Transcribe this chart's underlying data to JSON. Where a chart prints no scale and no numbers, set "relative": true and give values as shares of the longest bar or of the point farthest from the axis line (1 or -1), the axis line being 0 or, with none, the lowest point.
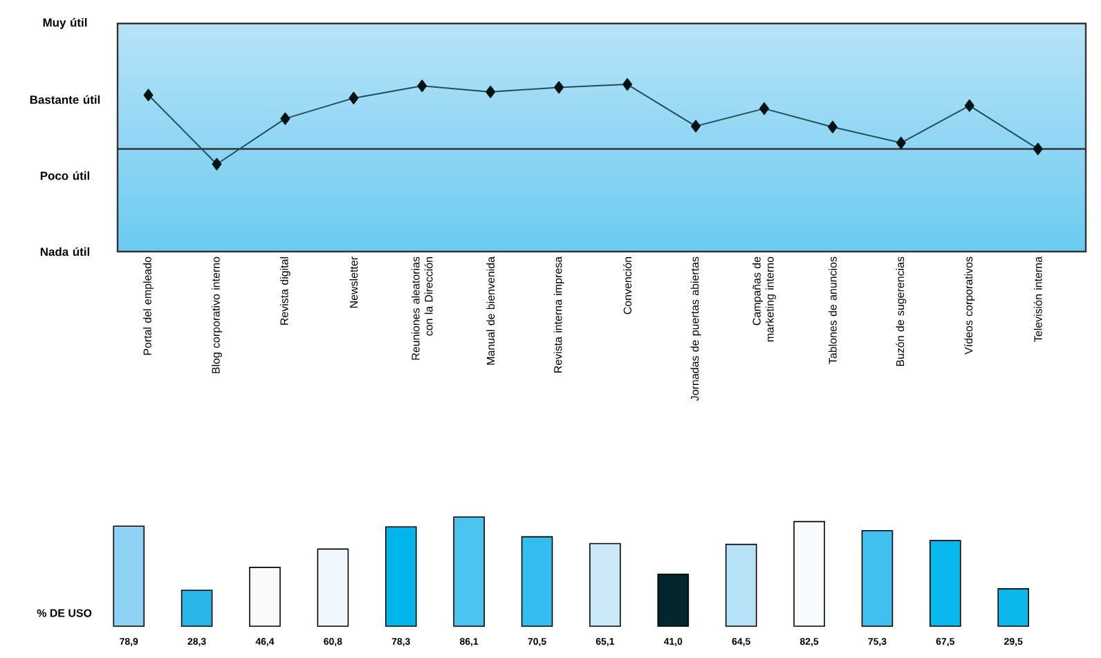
{
  "chart_data": [
    {
      "type": "line",
      "relative": true,
      "categories": [
        "Portal del empleado",
        "Blog corporativo interno",
        "Revista digital",
        "Newsletter",
        "Reuniones aleatorias con la Dirección",
        "Manual de bienvenida",
        "Revista interna impresa",
        "Convención",
        "Jornadas de puertas abiertas",
        "Campañas de marketing interno",
        "Tablones de anuncios",
        "Buzón de sugerencias",
        "Vídeos corporativos",
        "Televisión interna"
      ],
      "values": [
        0.936,
        0.523,
        0.795,
        0.918,
        0.991,
        0.955,
        0.982,
        1,
        0.75,
        0.855,
        0.745,
        0.65,
        0.873,
        0.614
      ],
      "color": "#1e4f5a",
      "marker": "diamond",
      "line_style": "solid",
      "annotations": [
        "Muy útil",
        "Bastante útil",
        "Poco útil",
        "Nada útil"
      ],
      "ref_lines": [
        {
          "axis": "y",
          "value": 0.614,
          "color": "#333333"
        }
      ]
    },
    {
      "type": "bar",
      "categories": [
        null,
        null,
        null,
        null,
        null,
        null,
        null,
        null,
        null,
        null,
        null,
        null,
        null,
        null
      ],
      "ylabel": "% DE USO",
      "values": [
        78.9,
        28.3,
        46.4,
        60.8,
        78.3,
        86.1,
        70.5,
        65.1,
        41.0,
        64.5,
        82.5,
        75.3,
        67.5,
        29.5
      ],
      "value_labels": [
        "78,9",
        "28,3",
        "46,4",
        "60,8",
        "78,3",
        "86,1",
        "70,5",
        "65,1",
        "41,0",
        "64,5",
        "82,5",
        "75,3",
        "67,5",
        "29,5"
      ],
      "colors": [
        "#8fd3f4",
        "#29b6e6",
        "#fafafa",
        "#f0f8fd",
        "#00b4ec",
        "#4dc4f0",
        "#33bdee",
        "#cbe9f8",
        "#06262e",
        "#b5e2f7",
        "#f8fbfd",
        "#40c0ee",
        "#09b8ec",
        "#0ab8ec"
      ]
    }
  ]
}
